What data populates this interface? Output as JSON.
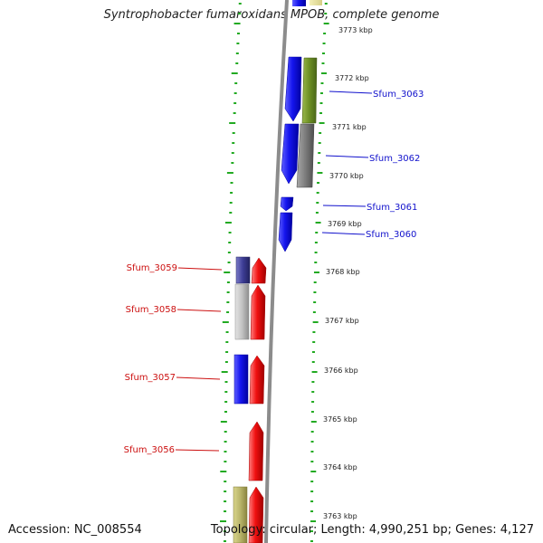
{
  "title": "Syntrophobacter fumaroxidans MPOB, complete genome",
  "accession": "Accession: NC_008554",
  "topology": "Topology: circular; Length: 4,990,251 bp; Genes: 4,127",
  "colors": {
    "gene_blue": "#1010ee",
    "gene_red": "#ee1010",
    "label_blue": "#1010cc",
    "label_red": "#cc1010",
    "olive": "#6b8e23",
    "gray": "#808080",
    "tick_green": "#22aa22"
  },
  "scale_ticks": [
    "3773 kbp",
    "3772 kbp",
    "3771 kbp",
    "3770 kbp",
    "3769 kbp",
    "3768 kbp",
    "3767 kbp",
    "3766 kbp",
    "3765 kbp",
    "3764 kbp",
    "3763 kbp"
  ],
  "gene_labels": {
    "outer": [
      "Sfum_3063",
      "Sfum_3062",
      "Sfum_3061",
      "Sfum_3060"
    ],
    "inner": [
      "Sfum_3059",
      "Sfum_3058",
      "Sfum_3057",
      "Sfum_3056"
    ]
  }
}
